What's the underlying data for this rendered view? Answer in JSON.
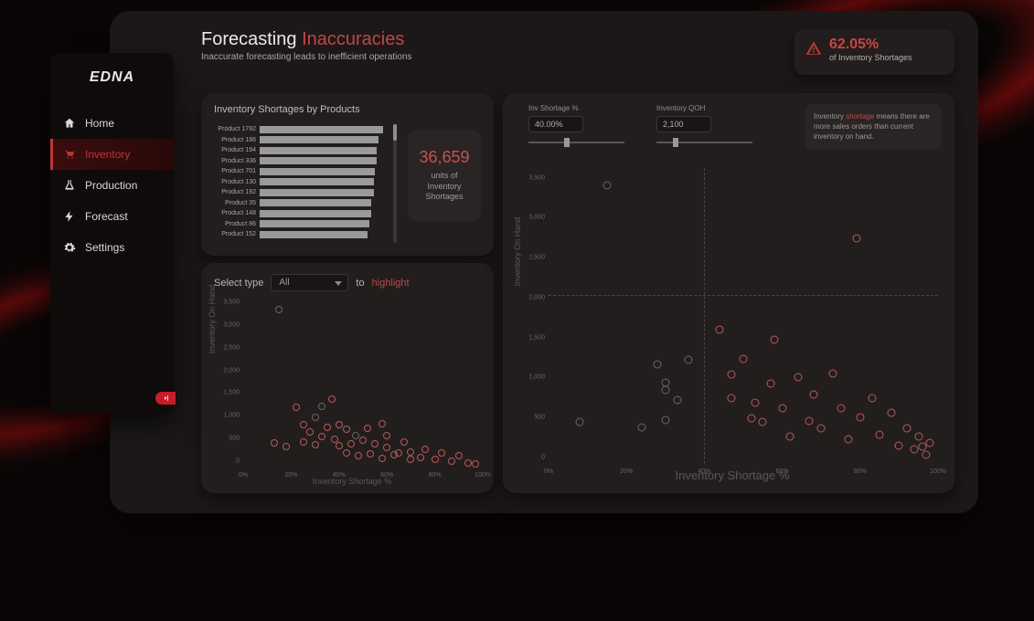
{
  "sidebar": {
    "logo": "EDNA",
    "items": [
      {
        "label": "Home",
        "icon": "home",
        "active": false
      },
      {
        "label": "Inventory",
        "icon": "cart",
        "active": true
      },
      {
        "label": "Production",
        "icon": "flask",
        "active": false
      },
      {
        "label": "Forecast",
        "icon": "bolt",
        "active": false
      },
      {
        "label": "Settings",
        "icon": "gear",
        "active": false
      }
    ]
  },
  "header": {
    "title_main": "Forecasting ",
    "title_accent": "Inaccuracies",
    "subtitle": "Inaccurate forecasting leads to inefficient operations"
  },
  "kpi": {
    "value": "62.05%",
    "label": "of Inventory Shortages"
  },
  "bar_card": {
    "title": "Inventory Shortages by Products",
    "kpi_value": "36,659",
    "kpi_text": "units of Inventory Shortages",
    "bar_color": "#9a9a9a",
    "products": [
      {
        "name": "Product 1792",
        "value": 140
      },
      {
        "name": "Product 186",
        "value": 135
      },
      {
        "name": "Product 194",
        "value": 133
      },
      {
        "name": "Product 336",
        "value": 133
      },
      {
        "name": "Product 701",
        "value": 131
      },
      {
        "name": "Product 130",
        "value": 130
      },
      {
        "name": "Product 192",
        "value": 130
      },
      {
        "name": "Product 35",
        "value": 126
      },
      {
        "name": "Product 148",
        "value": 126
      },
      {
        "name": "Product 86",
        "value": 124
      },
      {
        "name": "Product 152",
        "value": 122
      }
    ],
    "bar_max": 140
  },
  "small_scatter": {
    "select_label_pre": "Select type",
    "select_value": "All",
    "select_label_mid": "to",
    "highlight_text": "highlight",
    "x_label": "Inventory Shortage %",
    "y_label": "Inventory On Hand",
    "y_ticks": [
      0,
      500,
      1000,
      1500,
      2000,
      2500,
      3000,
      3500
    ],
    "y_max": 3700,
    "x_ticks": [
      0,
      20,
      40,
      60,
      80,
      100
    ],
    "x_max": 100,
    "point_color_a": "#b85a5a",
    "point_color_b": "#6b6464",
    "point_radius": 8,
    "points": [
      {
        "x": 15,
        "y": 3480,
        "c": "b"
      },
      {
        "x": 13,
        "y": 540,
        "c": "a"
      },
      {
        "x": 18,
        "y": 470,
        "c": "a"
      },
      {
        "x": 22,
        "y": 1330,
        "c": "a"
      },
      {
        "x": 25,
        "y": 950,
        "c": "a"
      },
      {
        "x": 25,
        "y": 560,
        "c": "a"
      },
      {
        "x": 28,
        "y": 780,
        "c": "a"
      },
      {
        "x": 30,
        "y": 1100,
        "c": "b"
      },
      {
        "x": 30,
        "y": 500,
        "c": "a"
      },
      {
        "x": 33,
        "y": 1350,
        "c": "b"
      },
      {
        "x": 33,
        "y": 680,
        "c": "a"
      },
      {
        "x": 35,
        "y": 880,
        "c": "a"
      },
      {
        "x": 37,
        "y": 1500,
        "c": "a"
      },
      {
        "x": 38,
        "y": 620,
        "c": "a"
      },
      {
        "x": 40,
        "y": 480,
        "c": "a"
      },
      {
        "x": 40,
        "y": 940,
        "c": "a"
      },
      {
        "x": 43,
        "y": 840,
        "c": "a"
      },
      {
        "x": 43,
        "y": 320,
        "c": "a"
      },
      {
        "x": 45,
        "y": 520,
        "c": "a"
      },
      {
        "x": 47,
        "y": 700,
        "c": "b"
      },
      {
        "x": 48,
        "y": 260,
        "c": "a"
      },
      {
        "x": 50,
        "y": 600,
        "c": "a"
      },
      {
        "x": 52,
        "y": 860,
        "c": "a"
      },
      {
        "x": 53,
        "y": 300,
        "c": "a"
      },
      {
        "x": 55,
        "y": 520,
        "c": "a"
      },
      {
        "x": 58,
        "y": 960,
        "c": "a"
      },
      {
        "x": 58,
        "y": 200,
        "c": "a"
      },
      {
        "x": 60,
        "y": 450,
        "c": "a"
      },
      {
        "x": 60,
        "y": 700,
        "c": "a"
      },
      {
        "x": 63,
        "y": 280,
        "c": "a"
      },
      {
        "x": 65,
        "y": 320,
        "c": "a"
      },
      {
        "x": 67,
        "y": 560,
        "c": "a"
      },
      {
        "x": 70,
        "y": 350,
        "c": "a"
      },
      {
        "x": 70,
        "y": 180,
        "c": "a"
      },
      {
        "x": 74,
        "y": 230,
        "c": "a"
      },
      {
        "x": 76,
        "y": 400,
        "c": "a"
      },
      {
        "x": 80,
        "y": 190,
        "c": "a"
      },
      {
        "x": 83,
        "y": 320,
        "c": "a"
      },
      {
        "x": 87,
        "y": 150,
        "c": "a"
      },
      {
        "x": 90,
        "y": 260,
        "c": "a"
      },
      {
        "x": 94,
        "y": 110,
        "c": "a"
      },
      {
        "x": 97,
        "y": 80,
        "c": "a"
      }
    ]
  },
  "large_scatter": {
    "slider1": {
      "label": "Inv Shortage %",
      "value": "40.00%",
      "track_pos": 40
    },
    "slider2": {
      "label": "Inventory QOH",
      "value": "2,100",
      "track_pos": 20
    },
    "info_pre": "Inventory ",
    "info_em": "shortage",
    "info_post": " means there are more sales orders than current inventory on hand.",
    "x_label": "Inventory Shortage %",
    "y_label": "Inventory On Hand",
    "x_ticks": [
      0,
      20,
      40,
      60,
      80,
      100
    ],
    "x_max": 100,
    "y_ticks": [
      0,
      500,
      1000,
      1500,
      2000,
      2500,
      3000,
      3500
    ],
    "y_max": 3700,
    "guide_x": 40,
    "guide_y": 2100,
    "point_color_a": "#b85a5a",
    "point_color_b": "#6b6464",
    "point_radius": 9,
    "points": [
      {
        "x": 15,
        "y": 3480,
        "c": "b"
      },
      {
        "x": 8,
        "y": 520,
        "c": "b"
      },
      {
        "x": 24,
        "y": 460,
        "c": "b"
      },
      {
        "x": 28,
        "y": 1250,
        "c": "b"
      },
      {
        "x": 30,
        "y": 930,
        "c": "b"
      },
      {
        "x": 30,
        "y": 550,
        "c": "b"
      },
      {
        "x": 30,
        "y": 1020,
        "c": "b"
      },
      {
        "x": 33,
        "y": 800,
        "c": "b"
      },
      {
        "x": 36,
        "y": 1300,
        "c": "b"
      },
      {
        "x": 44,
        "y": 1680,
        "c": "a"
      },
      {
        "x": 47,
        "y": 820,
        "c": "a"
      },
      {
        "x": 47,
        "y": 1120,
        "c": "a"
      },
      {
        "x": 50,
        "y": 1310,
        "c": "a"
      },
      {
        "x": 52,
        "y": 570,
        "c": "a"
      },
      {
        "x": 53,
        "y": 760,
        "c": "a"
      },
      {
        "x": 55,
        "y": 520,
        "c": "a"
      },
      {
        "x": 57,
        "y": 1010,
        "c": "a"
      },
      {
        "x": 58,
        "y": 1550,
        "c": "a"
      },
      {
        "x": 60,
        "y": 700,
        "c": "a"
      },
      {
        "x": 62,
        "y": 340,
        "c": "a"
      },
      {
        "x": 64,
        "y": 1080,
        "c": "a"
      },
      {
        "x": 67,
        "y": 540,
        "c": "a"
      },
      {
        "x": 68,
        "y": 870,
        "c": "a"
      },
      {
        "x": 70,
        "y": 440,
        "c": "a"
      },
      {
        "x": 73,
        "y": 1130,
        "c": "a"
      },
      {
        "x": 75,
        "y": 700,
        "c": "a"
      },
      {
        "x": 77,
        "y": 310,
        "c": "a"
      },
      {
        "x": 79,
        "y": 2820,
        "c": "a"
      },
      {
        "x": 80,
        "y": 580,
        "c": "a"
      },
      {
        "x": 83,
        "y": 820,
        "c": "a"
      },
      {
        "x": 85,
        "y": 370,
        "c": "a"
      },
      {
        "x": 88,
        "y": 640,
        "c": "a"
      },
      {
        "x": 90,
        "y": 230,
        "c": "a"
      },
      {
        "x": 92,
        "y": 450,
        "c": "a"
      },
      {
        "x": 94,
        "y": 180,
        "c": "a"
      },
      {
        "x": 95,
        "y": 340,
        "c": "a"
      },
      {
        "x": 96,
        "y": 220,
        "c": "a"
      },
      {
        "x": 97,
        "y": 120,
        "c": "a"
      },
      {
        "x": 98,
        "y": 260,
        "c": "a"
      }
    ]
  }
}
